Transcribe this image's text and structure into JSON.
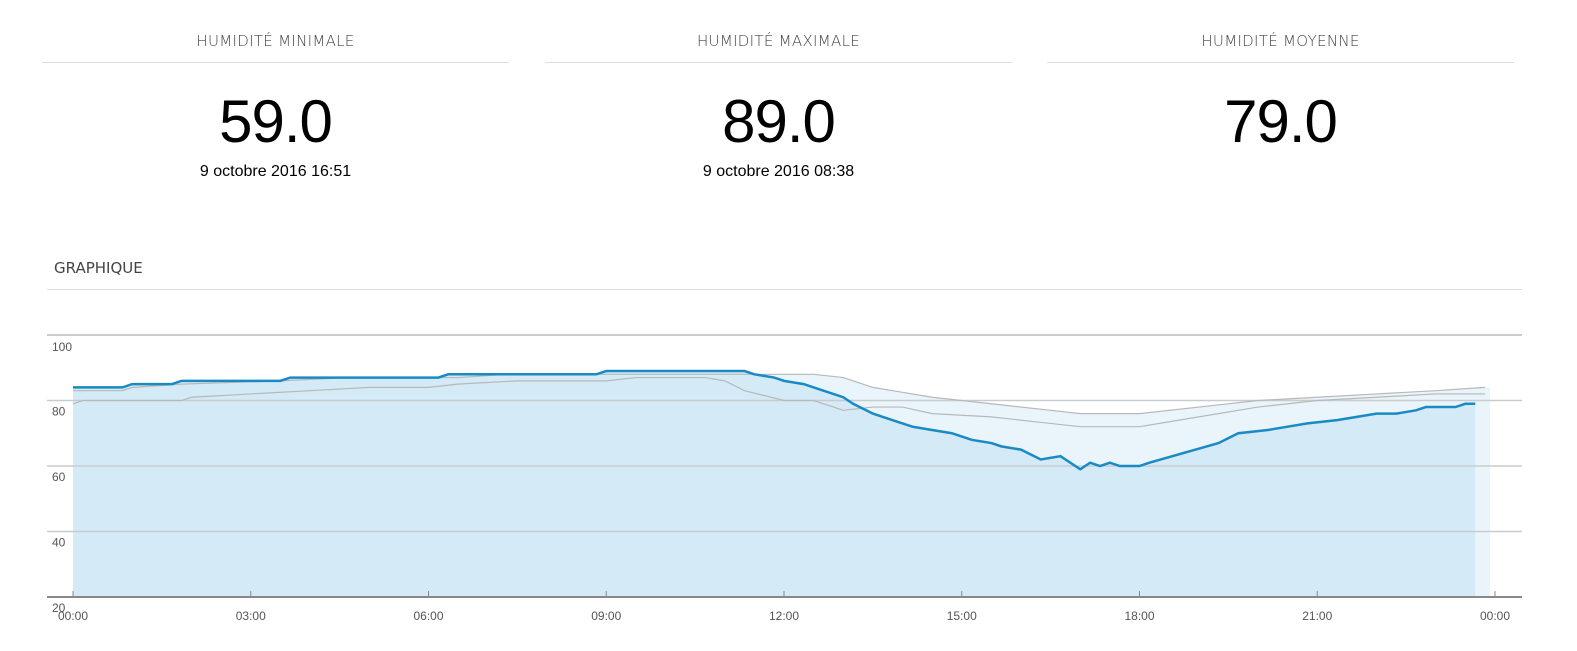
{
  "stats": [
    {
      "label": "HUMIDITÉ MINIMALE",
      "value": "59.0",
      "date": "9 octobre 2016 16:51"
    },
    {
      "label": "HUMIDITÉ MAXIMALE",
      "value": "89.0",
      "date": "9 octobre 2016 08:38"
    },
    {
      "label": "HUMIDITÉ MOYENNE",
      "value": "79.0"
    }
  ],
  "graph_title": "GRAPHIQUE",
  "chart_data": {
    "type": "area",
    "ylim": [
      20,
      100
    ],
    "yticks": [
      "20",
      "40",
      "60",
      "80",
      "100"
    ],
    "xticks": [
      "00:00",
      "03:00",
      "06:00",
      "09:00",
      "12:00",
      "15:00",
      "18:00",
      "21:00",
      "00:00"
    ],
    "grid": true,
    "colors": {
      "main": "#1a8ac4",
      "main_fill": "#d4eaf7",
      "band_fill": "#eaf5fb",
      "band_line": "#b8b8b8"
    },
    "series": [
      {
        "x": [
          "00:00",
          "00:50",
          "01:00",
          "01:40",
          "01:50",
          "03:30",
          "03:40",
          "06:10",
          "06:20",
          "08:50",
          "09:00",
          "11:20",
          "11:30",
          "11:50",
          "12:00",
          "12:20",
          "12:40",
          "13:00",
          "13:10",
          "13:30",
          "13:50",
          "14:10",
          "14:30",
          "14:50",
          "15:10",
          "15:30",
          "15:40",
          "16:00",
          "16:20",
          "16:40",
          "17:00",
          "17:10",
          "17:20",
          "17:30",
          "17:40",
          "18:00",
          "18:10",
          "19:20",
          "19:40",
          "20:10",
          "20:30",
          "20:50",
          "21:20",
          "21:40",
          "22:00",
          "22:20",
          "22:40",
          "22:50",
          "23:20",
          "23:30",
          "23:40"
        ],
        "y": [
          84,
          84,
          85,
          85,
          86,
          86,
          87,
          87,
          88,
          88,
          89,
          89,
          88,
          87,
          86,
          85,
          83,
          81,
          79,
          76,
          74,
          72,
          71,
          70,
          68,
          67,
          66,
          65,
          62,
          63,
          59,
          61,
          60,
          61,
          60,
          60,
          61,
          67,
          70,
          71,
          72,
          73,
          74,
          75,
          76,
          76,
          77,
          78,
          78,
          79,
          79
        ]
      },
      {
        "x": [
          "00:00",
          "00:50",
          "01:00",
          "01:50",
          "03:30",
          "04:40",
          "06:30",
          "07:20",
          "11:00",
          "12:30",
          "13:00",
          "13:30",
          "14:30",
          "15:30",
          "16:30",
          "17:00",
          "18:00",
          "19:00",
          "20:00",
          "21:00",
          "22:00",
          "23:00",
          "23:50"
        ],
        "y": [
          83,
          83,
          84,
          85,
          86,
          87,
          87,
          88,
          88,
          88,
          87,
          84,
          81,
          79,
          77,
          76,
          76,
          78,
          80,
          81,
          82,
          83,
          84
        ]
      },
      {
        "x": [
          "00:00",
          "00:10",
          "01:50",
          "02:00",
          "03:00",
          "04:00",
          "05:00",
          "06:00",
          "06:30",
          "07:30",
          "09:00",
          "09:30",
          "10:40",
          "11:00",
          "11:20",
          "12:00",
          "12:30",
          "13:00",
          "13:30",
          "14:00",
          "14:30",
          "15:30",
          "16:30",
          "17:00",
          "18:00",
          "19:00",
          "20:00",
          "21:00",
          "22:00",
          "23:00",
          "23:50"
        ],
        "y": [
          79,
          80,
          80,
          81,
          82,
          83,
          84,
          84,
          85,
          86,
          86,
          87,
          87,
          86,
          83,
          80,
          80,
          77,
          78,
          78,
          76,
          75,
          73,
          72,
          72,
          75,
          78,
          80,
          81,
          82,
          82
        ]
      }
    ]
  }
}
